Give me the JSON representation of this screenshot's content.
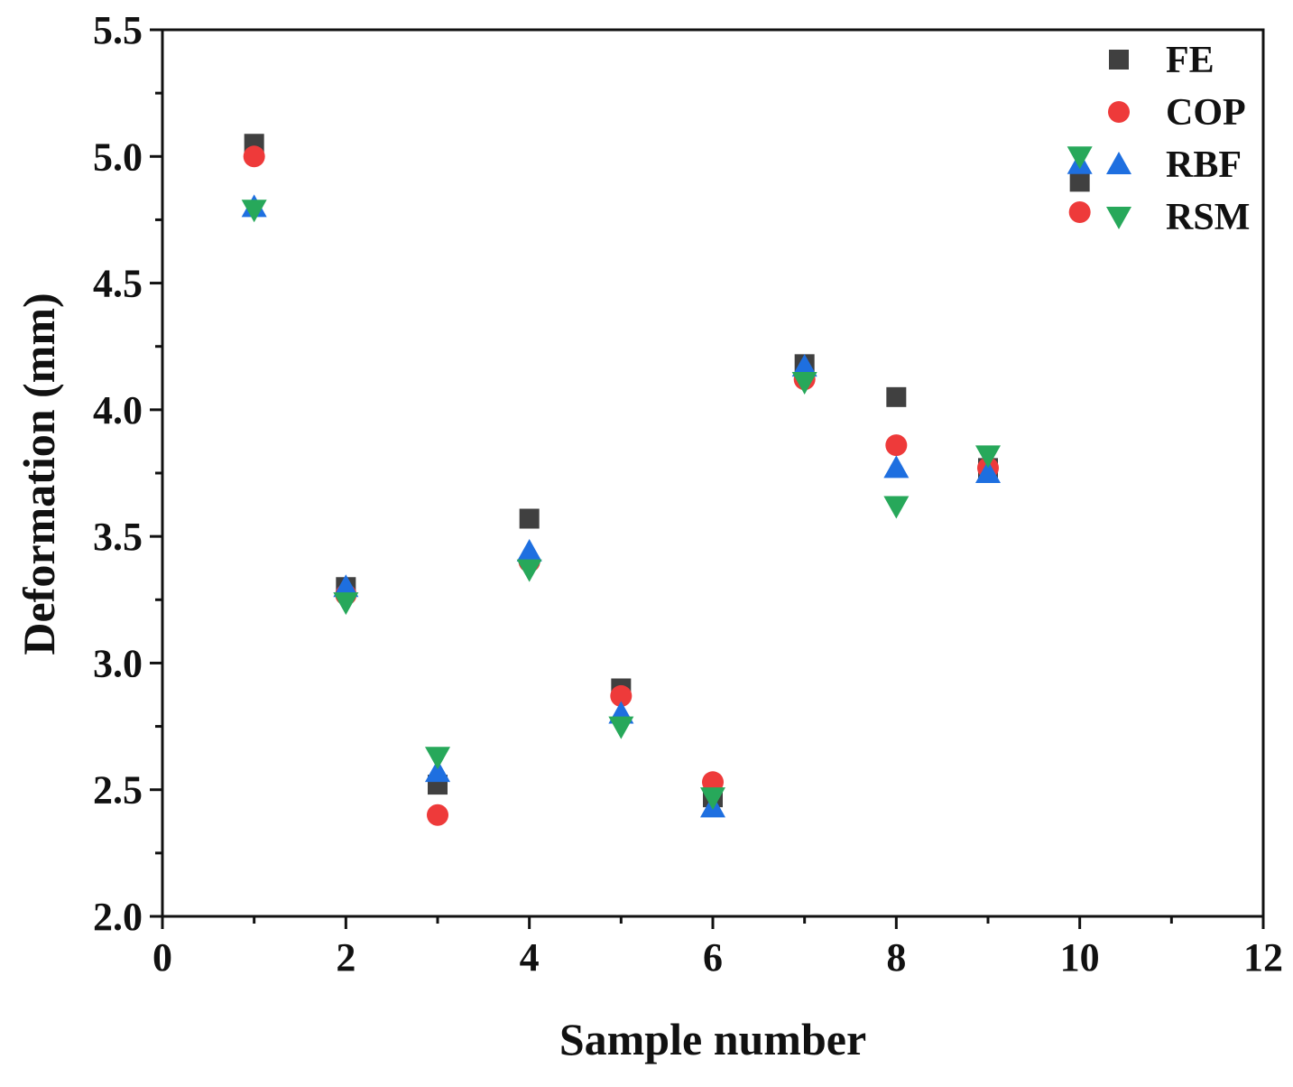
{
  "chart_data": {
    "type": "scatter",
    "xlabel": "Sample number",
    "ylabel": "Deformation (mm)",
    "xlim": [
      0,
      12
    ],
    "ylim": [
      2.0,
      5.5
    ],
    "xticks": [
      "0",
      "2",
      "4",
      "6",
      "8",
      "10",
      "12"
    ],
    "yticks": [
      "2.0",
      "2.5",
      "3.0",
      "3.5",
      "4.0",
      "4.5",
      "5.0",
      "5.5"
    ],
    "grid": false,
    "legend_position": "top-right",
    "x": [
      1,
      2,
      3,
      4,
      5,
      6,
      7,
      8,
      9,
      10
    ],
    "series": [
      {
        "name": "FE",
        "marker": "square",
        "color": "#404040",
        "values": [
          5.05,
          3.3,
          2.52,
          3.57,
          2.9,
          2.47,
          4.18,
          4.05,
          3.77,
          4.9
        ]
      },
      {
        "name": "COP",
        "marker": "circle",
        "color": "#ee3a3a",
        "values": [
          5.0,
          3.27,
          2.4,
          3.4,
          2.87,
          2.53,
          4.12,
          3.86,
          3.77,
          4.78
        ]
      },
      {
        "name": "RBF",
        "marker": "triangle-up",
        "color": "#1e6fe0",
        "values": [
          4.8,
          3.3,
          2.57,
          3.44,
          2.8,
          2.43,
          4.17,
          3.77,
          3.75,
          4.97
        ]
      },
      {
        "name": "RSM",
        "marker": "triangle-down",
        "color": "#27a85a",
        "values": [
          4.79,
          3.24,
          2.63,
          3.37,
          2.75,
          2.47,
          4.11,
          3.62,
          3.82,
          5.0
        ]
      }
    ]
  }
}
